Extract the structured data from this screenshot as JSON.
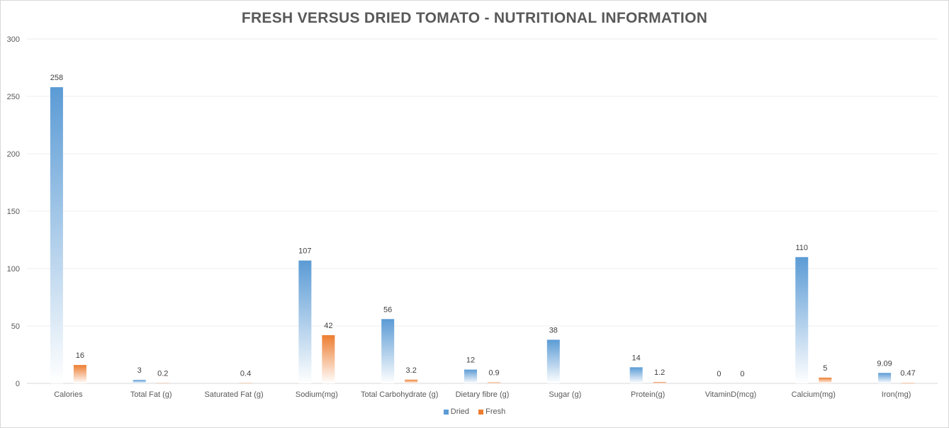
{
  "chart_data": {
    "type": "bar",
    "title": "FRESH VERSUS DRIED TOMATO - NUTRITIONAL INFORMATION",
    "xlabel": "",
    "ylabel": "",
    "ylim": [
      0,
      300
    ],
    "yticks": [
      0,
      50,
      100,
      150,
      200,
      250,
      300
    ],
    "grid": true,
    "legend_position": "bottom",
    "categories": [
      "Calories",
      "Total Fat (g)",
      "Saturated Fat (g)",
      "Sodium(mg)",
      "Total Carbohydrate (g)",
      "Dietary fibre (g)",
      "Sugar (g)",
      "Protein(g)",
      "VitaminD(mcg)",
      "Calcium(mg)",
      "Iron(mg)"
    ],
    "series": [
      {
        "name": "Dried",
        "color": "#5b9bd5",
        "values": [
          258,
          3,
          null,
          107,
          56,
          12,
          38,
          14,
          0,
          110,
          9.09
        ],
        "labels": [
          "258",
          "3",
          "",
          "107",
          "56",
          "12",
          "38",
          "14",
          "0",
          "110",
          "9.09"
        ]
      },
      {
        "name": "Fresh",
        "color": "#ed7d31",
        "values": [
          16,
          0.2,
          0.4,
          42,
          3.2,
          0.9,
          null,
          1.2,
          0,
          5,
          0.47
        ],
        "labels": [
          "16",
          "0.2",
          "0.4",
          "42",
          "3.2",
          "0.9",
          "",
          "1.2",
          "0",
          "5",
          "0.47"
        ]
      }
    ]
  }
}
